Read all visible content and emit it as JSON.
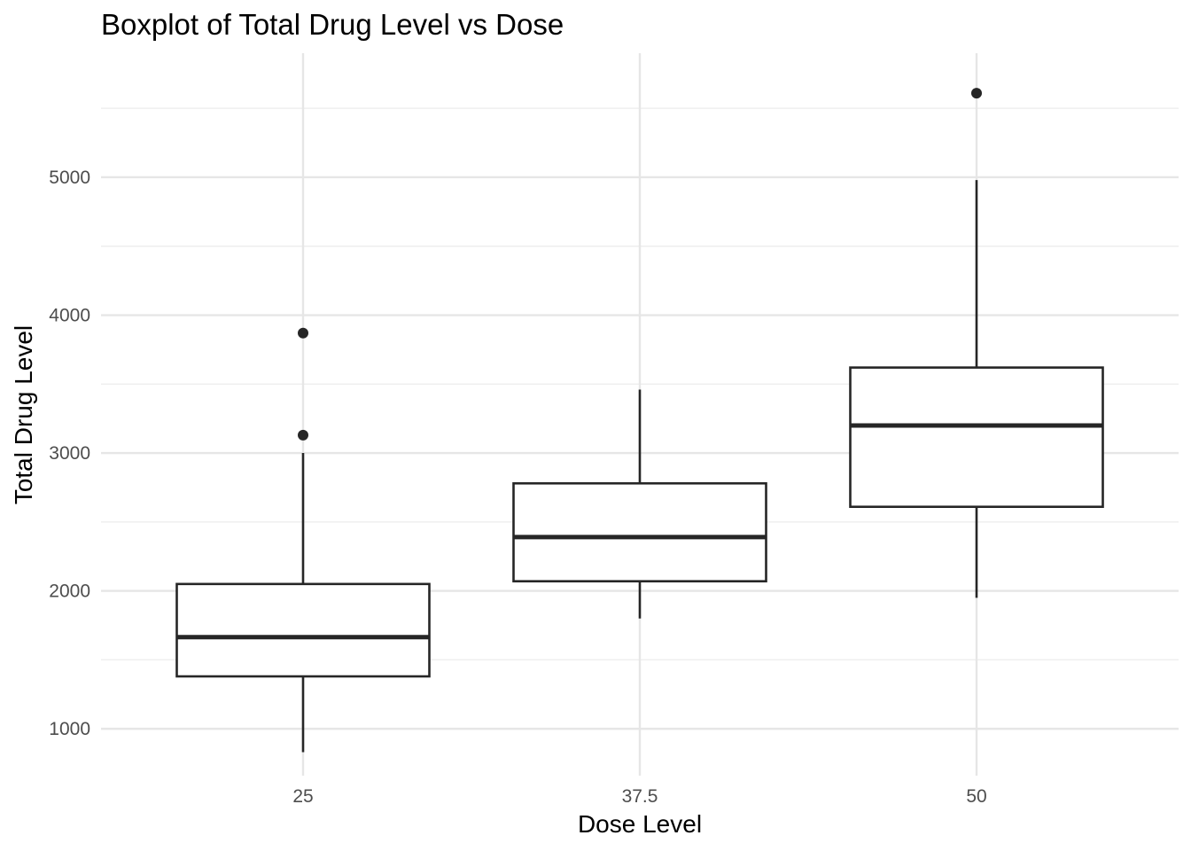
{
  "chart_data": {
    "type": "boxplot",
    "title": "Boxplot of Total Drug Level vs Dose",
    "xlabel": "Dose Level",
    "ylabel": "Total Drug Level",
    "categories": [
      "25",
      "37.5",
      "50"
    ],
    "ylim": [
      660,
      5900
    ],
    "y_ticks": [
      1000,
      2000,
      3000,
      4000,
      5000
    ],
    "y_tick_labels": [
      "1000",
      "2000",
      "3000",
      "4000",
      "5000"
    ],
    "grid": true,
    "boxes": [
      {
        "category": "25",
        "whisker_low": 830,
        "q1": 1380,
        "median": 1665,
        "q3": 2050,
        "whisker_high": 3000,
        "outliers": [
          3130,
          3870
        ]
      },
      {
        "category": "37.5",
        "whisker_low": 1800,
        "q1": 2070,
        "median": 2390,
        "q3": 2780,
        "whisker_high": 3460,
        "outliers": []
      },
      {
        "category": "50",
        "whisker_low": 1950,
        "q1": 2610,
        "median": 3200,
        "q3": 3620,
        "whisker_high": 4980,
        "outliers": [
          5610
        ]
      }
    ],
    "colors": {
      "box_line": "#262626",
      "box_fill": "#ffffff",
      "grid": "#e6e6e6",
      "tick_text": "#4d4d4d"
    }
  }
}
